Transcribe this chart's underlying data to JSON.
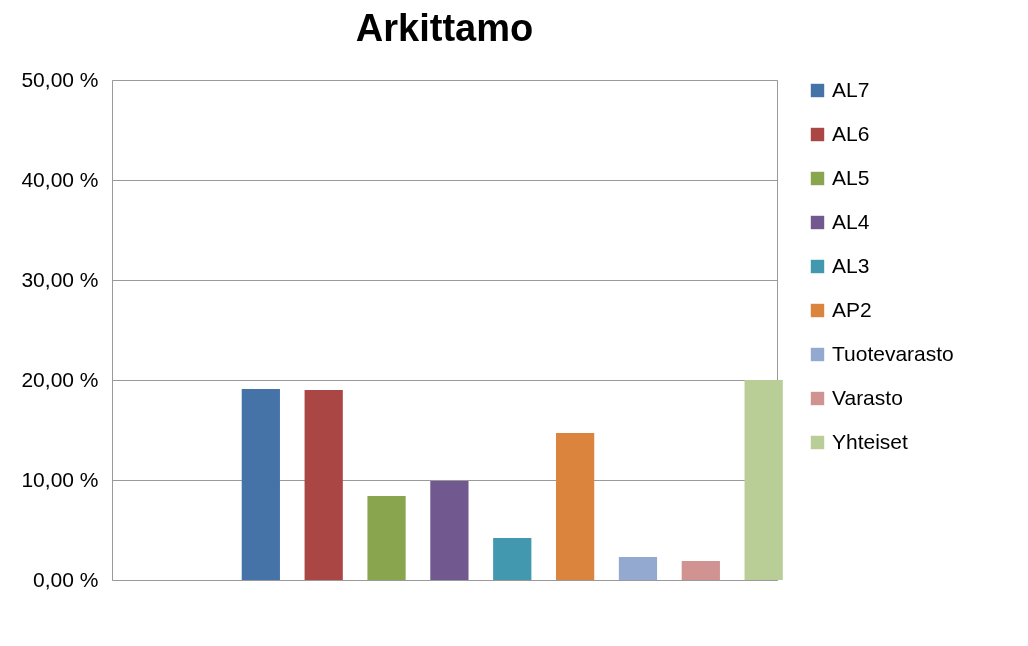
{
  "chart_data": {
    "type": "bar",
    "title": "Arkittamo",
    "categories": [
      null
    ],
    "series": [
      {
        "name": "AL7",
        "color": "#4572a7",
        "values": [
          19.1
        ]
      },
      {
        "name": "AL6",
        "color": "#aa4643",
        "values": [
          19.0
        ]
      },
      {
        "name": "AL5",
        "color": "#89a54e",
        "values": [
          8.4
        ]
      },
      {
        "name": "AL4",
        "color": "#71588f",
        "values": [
          9.9
        ]
      },
      {
        "name": "AL3",
        "color": "#4198af",
        "values": [
          4.2
        ]
      },
      {
        "name": "AP2",
        "color": "#db843d",
        "values": [
          14.7
        ]
      },
      {
        "name": "Tuotevarasto",
        "color": "#93a9cf",
        "values": [
          2.3
        ]
      },
      {
        "name": "Varasto",
        "color": "#d19392",
        "values": [
          1.9
        ]
      },
      {
        "name": "Yhteiset",
        "color": "#b9cd96",
        "values": [
          20.0
        ]
      }
    ],
    "ylim": [
      0,
      50
    ],
    "yticks": [
      {
        "value": 0,
        "label": "0,00 %"
      },
      {
        "value": 10,
        "label": "10,00 %"
      },
      {
        "value": 20,
        "label": "20,00 %"
      },
      {
        "value": 30,
        "label": "30,00 %"
      },
      {
        "value": 40,
        "label": "40,00 %"
      },
      {
        "value": 50,
        "label": "50,00 %"
      }
    ],
    "grid": "y",
    "legend": "right"
  }
}
